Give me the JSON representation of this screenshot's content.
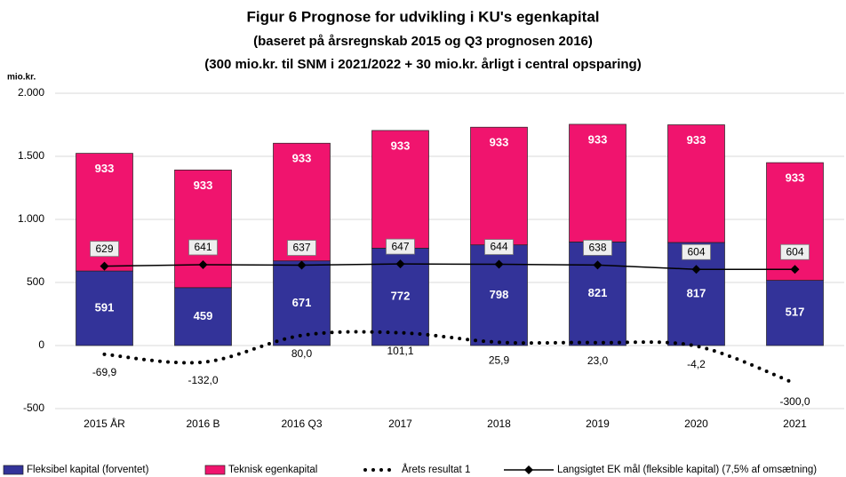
{
  "chart_data": {
    "type": "bar",
    "stacked": true,
    "title": "Figur 6 Prognose for udvikling i KU's egenkapital",
    "subtitle": "(baseret på årsregnskab 2015 og Q3 prognosen 2016)",
    "subtitle2": "(300 mio.kr. til SNM i 2021/2022 + 30 mio.kr. årligt i central opsparing)",
    "y_label": "mio.kr.",
    "categories": [
      "2015 ÅR",
      "2016 B",
      "2016 Q3",
      "2017",
      "2018",
      "2019",
      "2020",
      "2021"
    ],
    "ylim": [
      -500,
      2000
    ],
    "yticks": [
      -500,
      0,
      500,
      {
        "value": 1000,
        "label": "1.000"
      },
      {
        "value": 1500,
        "label": "1.500"
      },
      {
        "value": 2000,
        "label": "2.000"
      }
    ],
    "grid": true,
    "series": [
      {
        "name": "Fleksibel kapital (forventet)",
        "type": "bar",
        "color": "#333399",
        "values": [
          591,
          459,
          671,
          772,
          798,
          821,
          817,
          517
        ]
      },
      {
        "name": "Teknisk egenkapital",
        "type": "bar",
        "color": "#f0146e",
        "values": [
          933,
          933,
          933,
          933,
          933,
          933,
          933,
          933
        ]
      },
      {
        "name": "Årets resultat 1",
        "type": "dotted-line",
        "color": "#000000",
        "values": [
          -69.9,
          -132.0,
          80.0,
          101.1,
          25.9,
          23.0,
          -4.2,
          -300.0
        ],
        "value_labels": [
          "-69,9",
          "-132,0",
          "80,0",
          "101,1",
          "25,9",
          "23,0",
          "-4,2",
          "-300,0"
        ]
      },
      {
        "name": "Langsigtet EK mål (fleksible kapital) (7,5% af omsætning)",
        "type": "line",
        "color": "#000000",
        "values": [
          629,
          641,
          637,
          647,
          644,
          638,
          604,
          604
        ]
      }
    ]
  }
}
